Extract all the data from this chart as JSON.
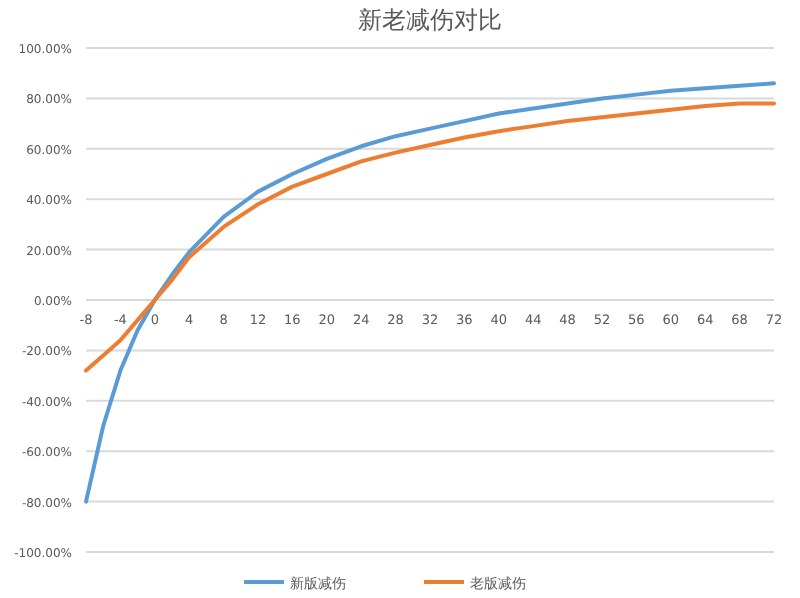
{
  "chart_data": {
    "type": "line",
    "title": "新老减伤对比",
    "x": [
      -8,
      -6,
      -4,
      -2,
      0,
      2,
      4,
      8,
      12,
      16,
      20,
      24,
      28,
      32,
      36,
      40,
      44,
      48,
      52,
      56,
      60,
      64,
      68,
      72
    ],
    "series": [
      {
        "name": "新版减伤",
        "color": "#5b9bd5",
        "values": [
          -80,
          -50,
          -28,
          -12,
          0,
          10,
          19,
          33,
          43,
          50,
          56,
          61,
          65,
          68,
          71,
          74,
          76,
          78,
          80,
          81.5,
          83,
          84,
          85,
          86
        ]
      },
      {
        "name": "老版减伤",
        "color": "#ed7d31",
        "values": [
          -28,
          -22,
          -16,
          -8,
          0,
          8,
          17,
          29,
          38,
          45,
          50,
          55,
          58.5,
          61.5,
          64.5,
          67,
          69,
          71,
          72.5,
          74,
          75.5,
          77,
          78,
          78
        ]
      }
    ],
    "xlim": [
      -8,
      72
    ],
    "xticks": [
      -8,
      -4,
      0,
      4,
      8,
      12,
      16,
      20,
      24,
      28,
      32,
      36,
      40,
      44,
      48,
      52,
      56,
      60,
      64,
      68,
      72
    ],
    "ylim": [
      -100,
      100
    ],
    "yticks": [
      {
        "value": -100,
        "label": "-100.00%"
      },
      {
        "value": -80,
        "label": "-80.00%"
      },
      {
        "value": -60,
        "label": "-60.00%"
      },
      {
        "value": -40,
        "label": "-40.00%"
      },
      {
        "value": -20,
        "label": "-20.00%"
      },
      {
        "value": 0,
        "label": "0.00%"
      },
      {
        "value": 20,
        "label": "20.00%"
      },
      {
        "value": 40,
        "label": "40.00%"
      },
      {
        "value": 60,
        "label": "60.00%"
      },
      {
        "value": 80,
        "label": "80.00%"
      },
      {
        "value": 100,
        "label": "100.00%"
      }
    ],
    "grid": "y",
    "legend": "bottom",
    "marker": "none",
    "line_style": "solid"
  }
}
